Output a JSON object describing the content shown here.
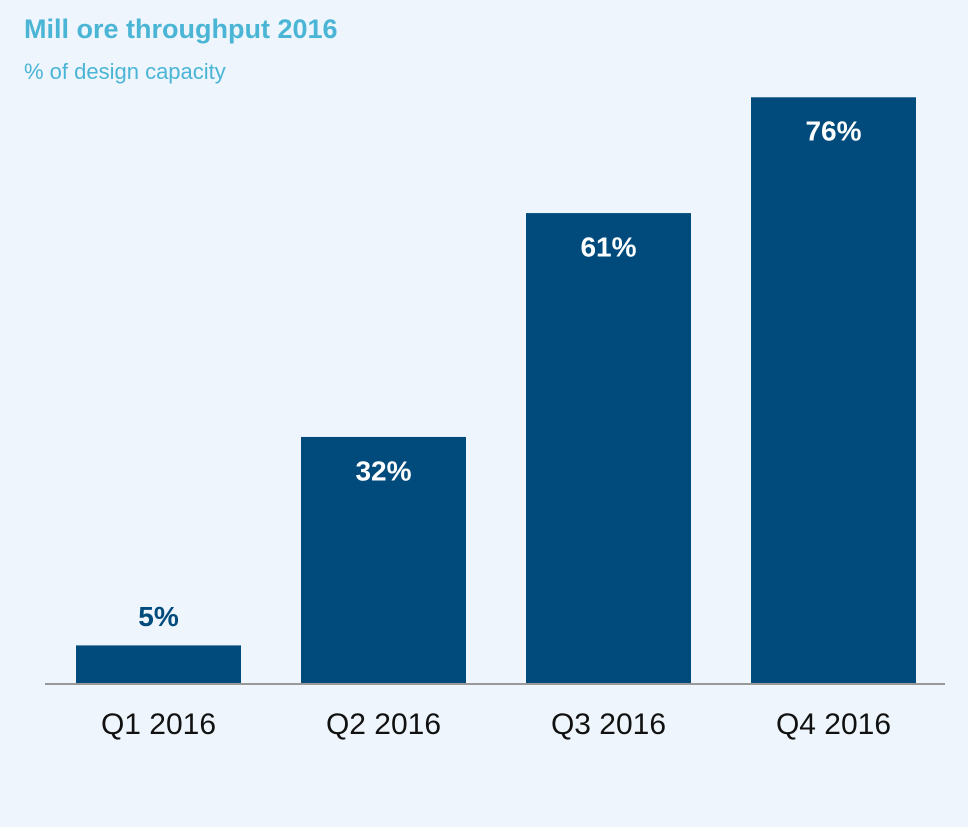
{
  "chart_data": {
    "type": "bar",
    "title": "Mill ore throughput 2016",
    "subtitle": "% of design capacity",
    "categories": [
      "Q1 2016",
      "Q2 2016",
      "Q3 2016",
      "Q4 2016"
    ],
    "values": [
      5,
      32,
      61,
      76
    ],
    "value_labels": [
      "5%",
      "32%",
      "61%",
      "76%"
    ],
    "color": "#004a7c"
  }
}
